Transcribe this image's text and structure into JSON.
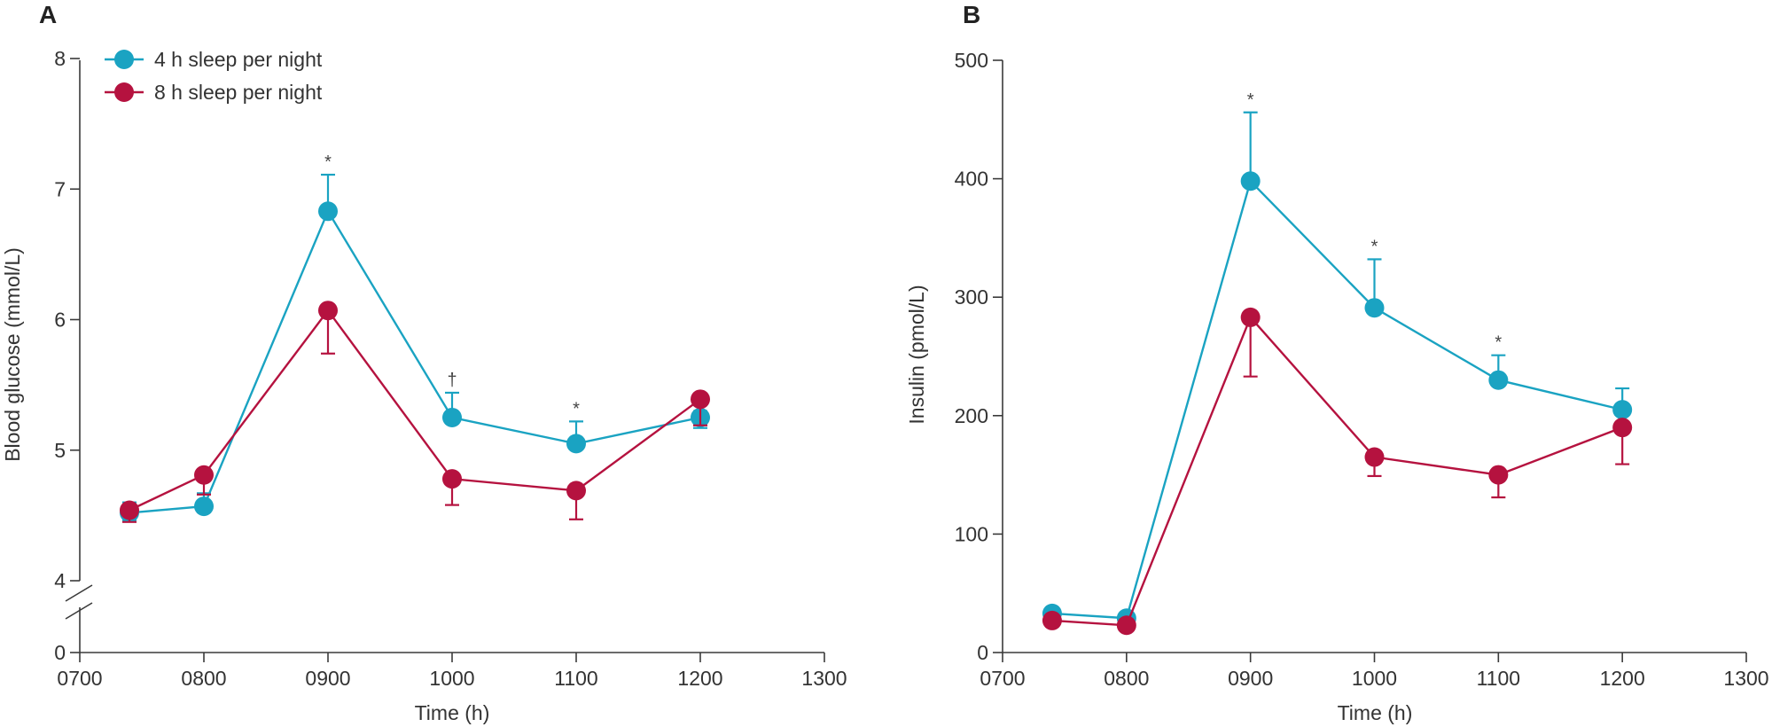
{
  "colors": {
    "short_sleep": "#1aa3c2",
    "long_sleep": "#b5123f",
    "axis": "#3a3a3a"
  },
  "legend": [
    {
      "label": "4 h sleep per night",
      "color": "#1aa3c2"
    },
    {
      "label": "8 h sleep per night",
      "color": "#b5123f"
    }
  ],
  "chart_data": [
    {
      "type": "line",
      "panel_label": "A",
      "xlabel": "Time (h)",
      "ylabel": "Blood glucose (mmol/L)",
      "xlim": [
        700,
        1300
      ],
      "ylim": [
        4,
        8
      ],
      "axis_break": true,
      "x_ticks": [
        "0700",
        "0800",
        "0900",
        "1000",
        "1100",
        "1200",
        "1300"
      ],
      "y_ticks": [
        "0",
        "4",
        "5",
        "6",
        "7",
        "8"
      ],
      "legend_position": "top-left",
      "series": [
        {
          "name": "4 h sleep per night",
          "color": "#1aa3c2",
          "x": [
            740,
            800,
            900,
            1000,
            1100,
            1200
          ],
          "y": [
            4.52,
            4.57,
            6.83,
            5.25,
            5.05,
            5.25
          ],
          "error_upper": [
            0.08,
            0.1,
            0.28,
            0.19,
            0.17,
            0.05
          ],
          "error_lower": [
            0.06,
            0,
            0,
            0,
            0,
            0.08
          ]
        },
        {
          "name": "8 h sleep per night",
          "color": "#b5123f",
          "x": [
            740,
            800,
            900,
            1000,
            1100,
            1200
          ],
          "y": [
            4.54,
            4.81,
            6.07,
            4.78,
            4.69,
            5.39
          ],
          "error_upper": [
            0,
            0,
            0,
            0,
            0,
            0
          ],
          "error_lower": [
            0.09,
            0.15,
            0.33,
            0.2,
            0.22,
            0.2
          ]
        }
      ],
      "annotations": [
        {
          "x": 900,
          "y": 7.11,
          "text": "*"
        },
        {
          "x": 1000,
          "y": 5.44,
          "text": "†"
        },
        {
          "x": 1100,
          "y": 5.22,
          "text": "*"
        }
      ]
    },
    {
      "type": "line",
      "panel_label": "B",
      "xlabel": "Time (h)",
      "ylabel": "Insulin (pmol/L)",
      "xlim": [
        700,
        1300
      ],
      "ylim": [
        0,
        500
      ],
      "x_ticks": [
        "0700",
        "0800",
        "0900",
        "1000",
        "1100",
        "1200",
        "1300"
      ],
      "y_ticks": [
        "0",
        "100",
        "200",
        "300",
        "400",
        "500"
      ],
      "series": [
        {
          "name": "4 h sleep per night",
          "color": "#1aa3c2",
          "x": [
            740,
            800,
            900,
            1000,
            1100,
            1200
          ],
          "y": [
            33,
            29,
            398,
            291,
            230,
            205
          ],
          "error_upper": [
            0,
            0,
            58,
            41,
            21,
            18
          ],
          "error_lower": [
            0,
            0,
            0,
            0,
            0,
            0
          ]
        },
        {
          "name": "8 h sleep per night",
          "color": "#b5123f",
          "x": [
            740,
            800,
            900,
            1000,
            1100,
            1200
          ],
          "y": [
            27,
            23,
            283,
            165,
            150,
            190
          ],
          "error_upper": [
            0,
            0,
            0,
            0,
            0,
            0
          ],
          "error_lower": [
            0,
            0,
            50,
            16,
            19,
            31
          ]
        }
      ],
      "annotations": [
        {
          "x": 900,
          "y": 456,
          "text": "*"
        },
        {
          "x": 1000,
          "y": 332,
          "text": "*"
        },
        {
          "x": 1100,
          "y": 251,
          "text": "*"
        }
      ]
    }
  ]
}
